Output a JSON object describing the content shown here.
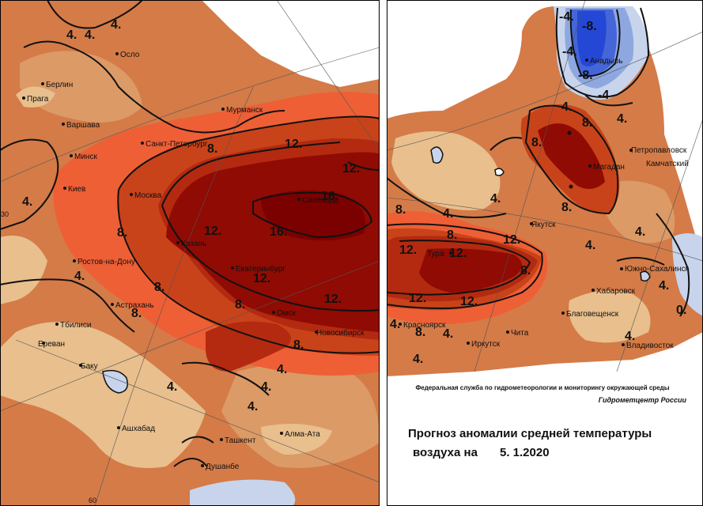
{
  "header": {
    "agency": "Федеральная служба по гидрометеорологии и мониторингу окружающей среды",
    "center": "Гидрометцентр России",
    "title_line1": "Прогноз аномалии средней температуры",
    "title_line2": "воздуха на",
    "date": "5. 1.2020"
  },
  "colors": {
    "anomaly_0_2": "#e8bf8d",
    "anomaly_2_4": "#dc9a66",
    "anomaly_4_6": "#d47b48",
    "anomaly_6_8": "#ee5f36",
    "anomaly_8_10": "#c8431a",
    "anomaly_10_12": "#b32a10",
    "anomaly_12_16": "#8f0b03",
    "anomaly_16_plus": "#7b0000",
    "negative_light": "#c7d4ec",
    "negative_mid": "#8ea8df",
    "negative_strong": "#4565d9",
    "negative_deep": "#2447d5"
  },
  "maps": {
    "west": {
      "coords": {
        "lat_label": "30",
        "lon_label": "60"
      },
      "cities": [
        "Осло",
        "Берлин",
        "Прага",
        "Варшава",
        "Минск",
        "Киев",
        "Мурманск",
        "Санкт-Петербург",
        "Москва",
        "Казань",
        "Ростов-на-Дону",
        "Астрахань",
        "Тбилиси",
        "Ереван",
        "Баку",
        "Ашхабад",
        "Ташкент",
        "Алма-Ата",
        "Душанбе",
        "Екатеринбург",
        "Омск",
        "Новосибирск",
        "Салехард"
      ],
      "isolines": [
        "4.",
        "4.",
        "4.",
        "4.",
        "8.",
        "8.",
        "4.",
        "8.",
        "12.",
        "12.",
        "16.",
        "16.",
        "12.",
        "12.",
        "12.",
        "8.",
        "8.",
        "8.",
        "4.",
        "4.",
        "4.",
        "4.",
        "4.",
        "4.",
        "4."
      ]
    },
    "east": {
      "cities": [
        "Анадырь",
        "Петропавловск",
        "Камчатский",
        "Магадан",
        "Якутск",
        "Тура",
        "Южно-Сахалинск",
        "Хабаровск",
        "Благовещенск",
        "Владивосток",
        "Чита",
        "Иркутск",
        "Красноярск"
      ],
      "isolines": [
        "-4.",
        "-8.",
        "-4.",
        "-8.",
        "-4",
        "4.",
        "8.",
        "8.",
        "4.",
        "8.",
        "4.",
        "8.",
        "12.",
        "12.",
        "12.",
        "8.",
        "12.",
        "12.",
        "8.",
        "4.",
        "4.",
        "4.",
        "4.",
        "0.",
        "4.",
        "4.",
        "4.",
        "8.",
        "4.",
        "4."
      ]
    }
  }
}
